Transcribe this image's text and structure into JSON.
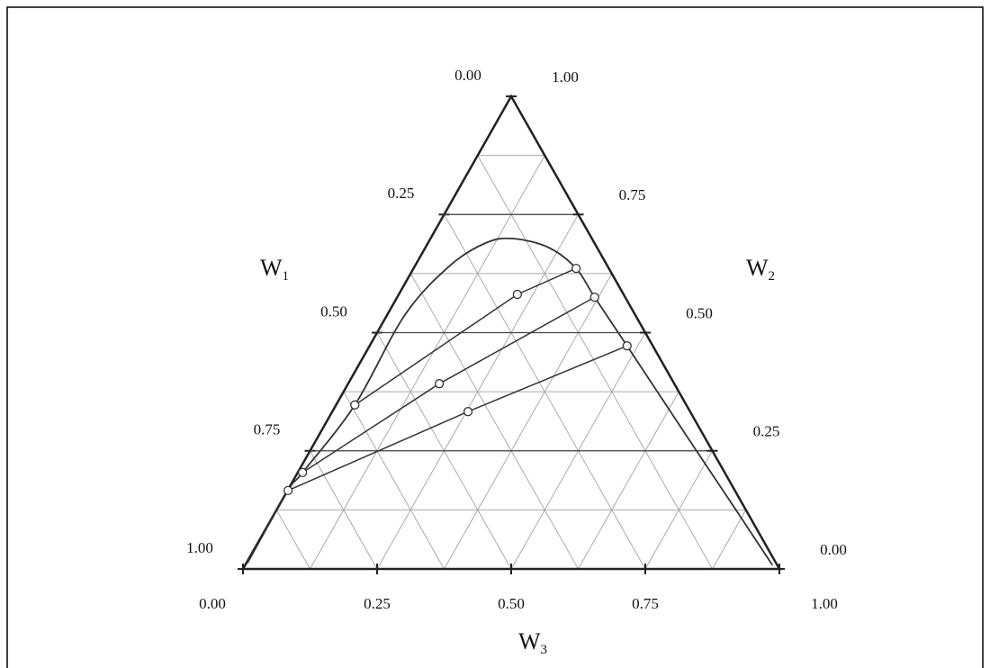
{
  "chart_data": {
    "type": "ternary",
    "axes": {
      "w1": {
        "label": {
          "base": "W",
          "sub": "1"
        },
        "ticks": [
          {
            "value": 0,
            "label": "0.00"
          },
          {
            "value": 0.25,
            "label": "0.25"
          },
          {
            "value": 0.5,
            "label": "0.50"
          },
          {
            "value": 0.75,
            "label": "0.75"
          },
          {
            "value": 1,
            "label": "1.00"
          }
        ]
      },
      "w2": {
        "label": {
          "base": "W",
          "sub": "2"
        },
        "ticks": [
          {
            "value": 1,
            "label": "1.00"
          },
          {
            "value": 0.75,
            "label": "0.75"
          },
          {
            "value": 0.5,
            "label": "0.50"
          },
          {
            "value": 0.25,
            "label": "0.25"
          },
          {
            "value": 0,
            "label": "0.00"
          }
        ]
      },
      "w3": {
        "label": {
          "base": "W",
          "sub": "3"
        },
        "ticks": [
          {
            "value": 0,
            "label": "0.00"
          },
          {
            "value": 0.25,
            "label": "0.25"
          },
          {
            "value": 0.5,
            "label": "0.50"
          },
          {
            "value": 0.75,
            "label": "0.75"
          },
          {
            "value": 1,
            "label": "1.00"
          }
        ]
      }
    },
    "grid": [
      0.125,
      0.25,
      0.375,
      0.5,
      0.625,
      0.75,
      0.875
    ],
    "binodal": {
      "color": "#333",
      "w2": [
        0.013,
        0.166,
        0.204,
        0.347,
        0.537,
        0.642,
        0.69,
        0.699,
        0.68,
        0.636,
        0.575,
        0.472,
        0.29,
        0.118,
        0.008
      ],
      "w3": [
        0.002,
        0.001,
        0.009,
        0.035,
        0.033,
        0.065,
        0.108,
        0.154,
        0.23,
        0.303,
        0.368,
        0.48,
        0.677,
        0.864,
        0.983
      ]
    },
    "tie_lines": [
      {
        "w2": [
          0.347,
          0.581,
          0.636
        ],
        "w3": [
          0.035,
          0.221,
          0.303
        ]
      },
      {
        "w2": [
          0.204,
          0.392,
          0.575
        ],
        "w3": [
          0.009,
          0.17,
          0.368
        ]
      },
      {
        "w2": [
          0.166,
          0.333,
          0.472
        ],
        "w3": [
          0.001,
          0.253,
          0.48
        ]
      }
    ],
    "color": "#333"
  }
}
